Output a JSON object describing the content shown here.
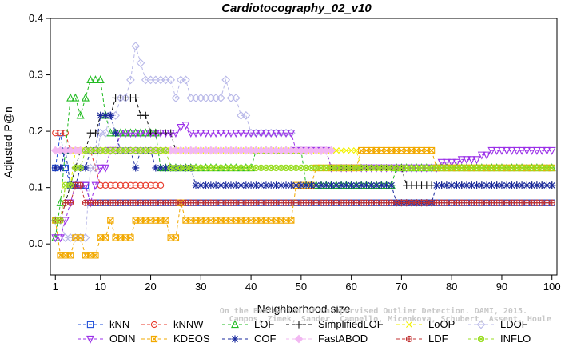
{
  "chart_data": {
    "type": "line",
    "title": "Cardiotocography_02_v10",
    "xlabel": "Neighborhood size",
    "ylabel": "Adjusted P@n",
    "xlim": [
      0,
      101
    ],
    "ylim": [
      -0.055,
      0.4
    ],
    "x_ticks": [
      1,
      10,
      20,
      30,
      40,
      50,
      60,
      70,
      80,
      90,
      100
    ],
    "x_tick_labels": [
      "1",
      "10",
      "20",
      "30",
      "40",
      "50",
      "60",
      "70",
      "80",
      "90",
      "100"
    ],
    "y_ticks": [
      0.0,
      0.1,
      0.2,
      0.3,
      0.4
    ],
    "y_tick_labels": [
      "0.0",
      "0.1",
      "0.2",
      "0.3",
      "0.4"
    ],
    "grid": false,
    "legend_position": "bottom",
    "watermark": [
      "Campos, Zimek, Sander, Campello, Micenkova, Schubert, Assent, Houle",
      "On the Evaluation of Unsupervised Outlier Detection. DAMI, 2015."
    ],
    "series": [
      {
        "name": "kNN",
        "color": "#1f4fd8",
        "marker": "square",
        "points": [
          [
            1,
            0.135
          ],
          [
            2,
            0.197
          ],
          [
            3,
            0.135
          ],
          [
            4,
            0.104
          ],
          [
            5,
            0.104
          ],
          [
            6,
            0.104
          ],
          [
            7,
            0.104
          ],
          [
            8,
            0.073
          ],
          [
            100,
            0.073
          ]
        ]
      },
      {
        "name": "kNNW",
        "color": "#e8392a",
        "marker": "circle",
        "points": [
          [
            1,
            0.197
          ],
          [
            3,
            0.197
          ],
          [
            4,
            0.166
          ],
          [
            6,
            0.166
          ],
          [
            7,
            0.166
          ],
          [
            8,
            0.166
          ],
          [
            9,
            0.135
          ],
          [
            10,
            0.104
          ],
          [
            22,
            0.104
          ]
        ]
      },
      {
        "name": "LOF",
        "color": "#22bb22",
        "marker": "triangle-up",
        "points": [
          [
            1,
            0.011
          ],
          [
            2,
            0.073
          ],
          [
            3,
            0.166
          ],
          [
            4,
            0.259
          ],
          [
            5,
            0.259
          ],
          [
            6,
            0.228
          ],
          [
            7,
            0.259
          ],
          [
            8,
            0.291
          ],
          [
            10,
            0.291
          ],
          [
            11,
            0.228
          ],
          [
            12,
            0.197
          ],
          [
            18,
            0.197
          ],
          [
            21,
            0.197
          ],
          [
            22,
            0.135
          ],
          [
            40,
            0.135
          ],
          [
            41,
            0.166
          ],
          [
            50,
            0.166
          ],
          [
            51,
            0.104
          ],
          [
            68,
            0.104
          ],
          [
            69,
            0.135
          ],
          [
            100,
            0.135
          ]
        ]
      },
      {
        "name": "SimplifiedLOF",
        "color": "#111111",
        "marker": "plus",
        "points": [
          [
            1,
            0.042
          ],
          [
            2,
            0.042
          ],
          [
            3,
            0.073
          ],
          [
            4,
            0.104
          ],
          [
            5,
            0.135
          ],
          [
            6,
            0.166
          ],
          [
            8,
            0.197
          ],
          [
            10,
            0.228
          ],
          [
            13,
            0.259
          ],
          [
            17,
            0.259
          ],
          [
            18,
            0.228
          ],
          [
            19,
            0.228
          ],
          [
            20,
            0.197
          ],
          [
            24,
            0.197
          ],
          [
            25,
            0.166
          ],
          [
            30,
            0.166
          ],
          [
            40,
            0.166
          ],
          [
            50,
            0.166
          ],
          [
            55,
            0.166
          ],
          [
            56,
            0.135
          ],
          [
            70,
            0.135
          ],
          [
            71,
            0.104
          ],
          [
            100,
            0.104
          ]
        ]
      },
      {
        "name": "LoOP",
        "color": "#f2f200",
        "marker": "x",
        "points": [
          [
            1,
            0.042
          ],
          [
            3,
            0.104
          ],
          [
            5,
            0.166
          ],
          [
            10,
            0.166
          ],
          [
            20,
            0.166
          ],
          [
            40,
            0.166
          ],
          [
            60,
            0.166
          ],
          [
            62,
            0.135
          ],
          [
            80,
            0.135
          ],
          [
            100,
            0.135
          ]
        ]
      },
      {
        "name": "LDOF",
        "color": "#b8b8e8",
        "marker": "diamond",
        "points": [
          [
            1,
            0.042
          ],
          [
            3,
            0.011
          ],
          [
            5,
            0.011
          ],
          [
            8,
            0.135
          ],
          [
            10,
            0.197
          ],
          [
            12,
            0.228
          ],
          [
            14,
            0.259
          ],
          [
            16,
            0.291
          ],
          [
            17,
            0.351
          ],
          [
            18,
            0.321
          ],
          [
            19,
            0.291
          ],
          [
            24,
            0.291
          ],
          [
            25,
            0.259
          ],
          [
            26,
            0.291
          ],
          [
            27,
            0.291
          ],
          [
            28,
            0.259
          ],
          [
            34,
            0.259
          ],
          [
            35,
            0.291
          ],
          [
            36,
            0.259
          ],
          [
            37,
            0.259
          ],
          [
            38,
            0.228
          ],
          [
            40,
            0.197
          ],
          [
            48,
            0.197
          ]
        ]
      },
      {
        "name": "ODIN",
        "color": "#9b30e8",
        "marker": "triangle-down",
        "points": [
          [
            1,
            0.011
          ],
          [
            2,
            0.011
          ],
          [
            3,
            0.042
          ],
          [
            4,
            0.073
          ],
          [
            5,
            0.104
          ],
          [
            6,
            0.104
          ],
          [
            7,
            0.104
          ],
          [
            8,
            0.073
          ],
          [
            9,
            0.104
          ],
          [
            10,
            0.135
          ],
          [
            12,
            0.166
          ],
          [
            14,
            0.197
          ],
          [
            20,
            0.197
          ],
          [
            24,
            0.197
          ],
          [
            25,
            0.197
          ],
          [
            26,
            0.207
          ],
          [
            27,
            0.211
          ],
          [
            28,
            0.197
          ],
          [
            48,
            0.197
          ],
          [
            49,
            0.166
          ],
          [
            55,
            0.166
          ],
          [
            56,
            0.135
          ],
          [
            70,
            0.135
          ],
          [
            74,
            0.135
          ],
          [
            78,
            0.145
          ],
          [
            82,
            0.15
          ],
          [
            86,
            0.158
          ],
          [
            88,
            0.166
          ],
          [
            100,
            0.166
          ]
        ]
      },
      {
        "name": "KDEOS",
        "color": "#f2a900",
        "marker": "square-x",
        "points": [
          [
            1,
            0.042
          ],
          [
            2,
            -0.02
          ],
          [
            4,
            -0.02
          ],
          [
            5,
            0.011
          ],
          [
            6,
            0.011
          ],
          [
            7,
            -0.02
          ],
          [
            9,
            -0.02
          ],
          [
            10,
            0.011
          ],
          [
            11,
            0.011
          ],
          [
            12,
            0.042
          ],
          [
            13,
            0.011
          ],
          [
            16,
            0.011
          ],
          [
            17,
            0.042
          ],
          [
            23,
            0.042
          ],
          [
            24,
            0.011
          ],
          [
            25,
            0.011
          ],
          [
            26,
            0.073
          ],
          [
            27,
            0.042
          ],
          [
            48,
            0.042
          ],
          [
            49,
            0.104
          ],
          [
            52,
            0.104
          ],
          [
            53,
            0.135
          ],
          [
            60,
            0.135
          ],
          [
            62,
            0.166
          ],
          [
            76,
            0.166
          ],
          [
            77,
            0.135
          ],
          [
            100,
            0.135
          ]
        ]
      },
      {
        "name": "COF",
        "color": "#1a2a9e",
        "marker": "asterisk",
        "points": [
          [
            1,
            0.135
          ],
          [
            2,
            0.135
          ],
          [
            3,
            0.166
          ],
          [
            4,
            0.104
          ],
          [
            5,
            0.104
          ],
          [
            6,
            0.135
          ],
          [
            7,
            0.135
          ],
          [
            8,
            0.166
          ],
          [
            10,
            0.228
          ],
          [
            12,
            0.228
          ],
          [
            13,
            0.197
          ],
          [
            14,
            0.166
          ],
          [
            17,
            0.135
          ],
          [
            18,
            0.166
          ],
          [
            21,
            0.135
          ],
          [
            28,
            0.135
          ],
          [
            29,
            0.104
          ],
          [
            49,
            0.104
          ],
          [
            50,
            0.104
          ],
          [
            51,
            0.104
          ],
          [
            68,
            0.104
          ],
          [
            69,
            0.073
          ],
          [
            76,
            0.073
          ],
          [
            77,
            0.104
          ],
          [
            100,
            0.104
          ]
        ]
      },
      {
        "name": "FastABOD",
        "color": "#f2b8f2",
        "marker": "diamond-filled",
        "points": [
          [
            1,
            0.166
          ],
          [
            10,
            0.166
          ],
          [
            20,
            0.166
          ],
          [
            30,
            0.166
          ],
          [
            40,
            0.166
          ],
          [
            50,
            0.166
          ],
          [
            54,
            0.166
          ],
          [
            56,
            0.166
          ]
        ]
      },
      {
        "name": "LDF",
        "color": "#c03030",
        "marker": "circle-plus",
        "points": [
          [
            1,
            0.042
          ],
          [
            3,
            0.073
          ],
          [
            5,
            0.104
          ],
          [
            6,
            0.104
          ],
          [
            7,
            0.073
          ],
          [
            100,
            0.073
          ]
        ]
      },
      {
        "name": "INFLO",
        "color": "#99dd22",
        "marker": "circle-cross",
        "points": [
          [
            1,
            0.042
          ],
          [
            3,
            0.104
          ],
          [
            5,
            0.135
          ],
          [
            7,
            0.166
          ],
          [
            10,
            0.166
          ],
          [
            22,
            0.166
          ],
          [
            24,
            0.135
          ],
          [
            40,
            0.135
          ],
          [
            50,
            0.135
          ],
          [
            60,
            0.135
          ],
          [
            100,
            0.135
          ]
        ]
      }
    ]
  }
}
